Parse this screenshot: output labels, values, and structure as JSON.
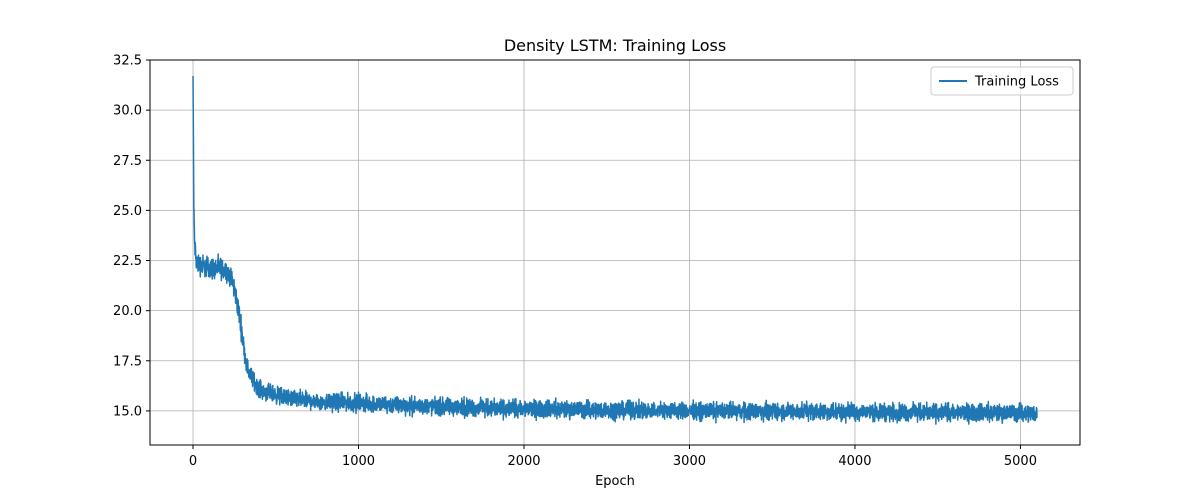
{
  "chart_data": {
    "type": "line",
    "title": "Density LSTM: Training Loss",
    "xlabel": "Epoch",
    "ylabel": "",
    "xlim": [
      -260,
      5360
    ],
    "ylim": [
      13.3,
      32.5
    ],
    "xticks": [
      0,
      1000,
      2000,
      3000,
      4000,
      5000
    ],
    "yticks": [
      15.0,
      17.5,
      20.0,
      22.5,
      25.0,
      27.5,
      30.0,
      32.5
    ],
    "xtick_labels": [
      "0",
      "1000",
      "2000",
      "3000",
      "4000",
      "5000"
    ],
    "ytick_labels": [
      "15.0",
      "17.5",
      "20.0",
      "22.5",
      "25.0",
      "27.5",
      "30.0",
      "32.5"
    ],
    "grid": true,
    "legend_position": "top-right",
    "series": [
      {
        "name": "Training Loss",
        "color": "#1f77b4",
        "x": [
          0,
          5,
          10,
          20,
          40,
          80,
          120,
          160,
          200,
          220,
          240,
          260,
          280,
          300,
          320,
          340,
          360,
          400,
          450,
          500,
          600,
          700,
          800,
          1000,
          1200,
          1500,
          2000,
          2500,
          3000,
          3500,
          4000,
          4500,
          5000,
          5100
        ],
        "y": [
          31.7,
          25.0,
          23.3,
          22.4,
          22.3,
          22.2,
          22.1,
          22.1,
          22.0,
          21.8,
          21.4,
          20.7,
          19.8,
          18.6,
          17.4,
          16.9,
          16.6,
          16.1,
          15.9,
          15.8,
          15.6,
          15.5,
          15.45,
          15.4,
          15.3,
          15.2,
          15.1,
          15.05,
          15.0,
          14.98,
          14.95,
          14.92,
          14.9,
          14.9
        ],
        "noise_amplitude": 0.35
      }
    ]
  }
}
